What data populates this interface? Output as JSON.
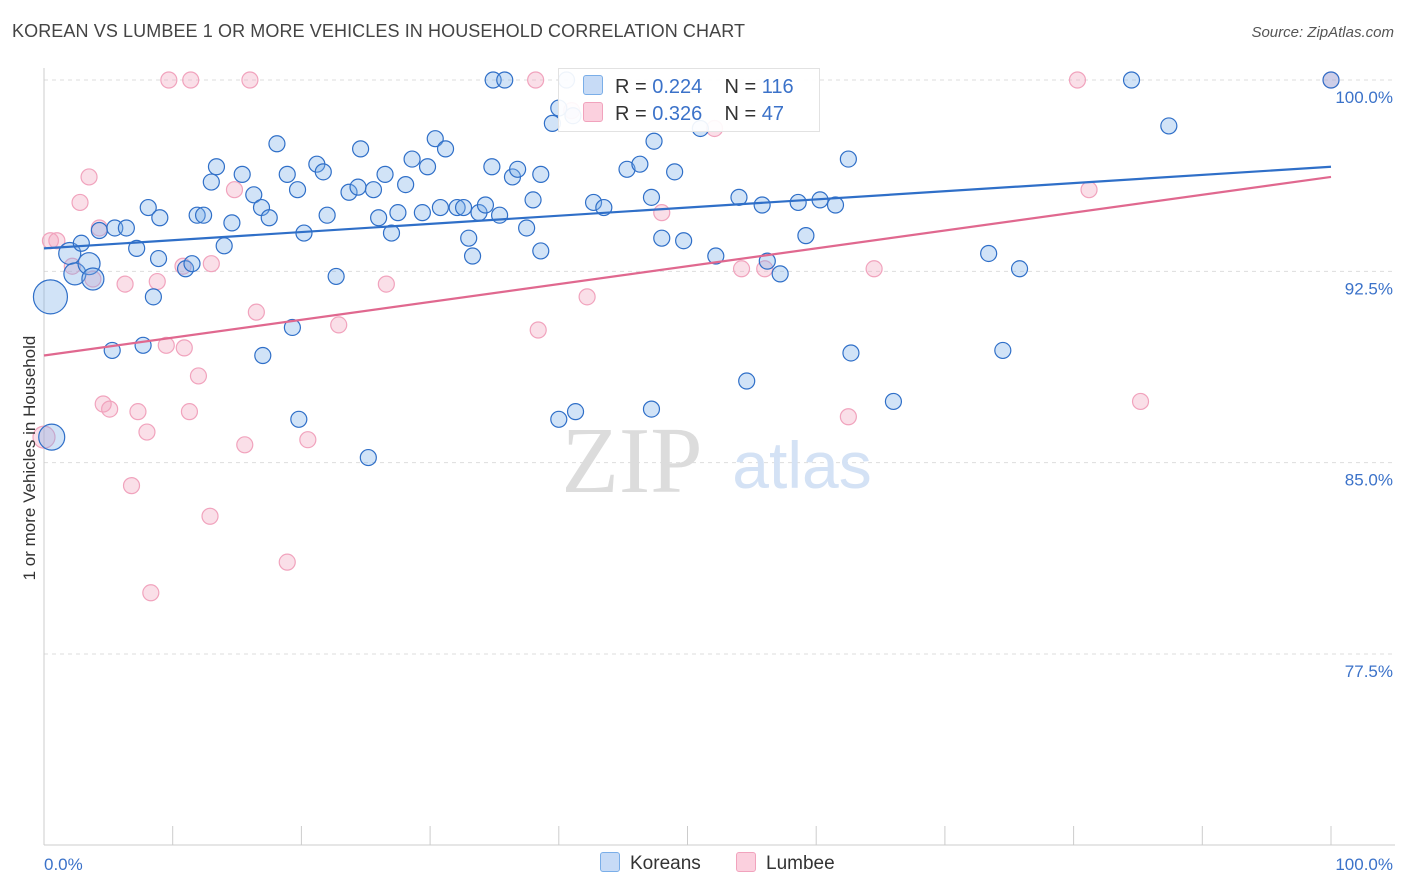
{
  "title": "KOREAN VS LUMBEE 1 OR MORE VEHICLES IN HOUSEHOLD CORRELATION CHART",
  "source": "Source: ZipAtlas.com",
  "watermark": {
    "zip": "ZIP",
    "atlas": "atlas"
  },
  "legend": {
    "koreans": {
      "r_label": "R =",
      "r_value": "0.224",
      "n_label": "N =",
      "n_value": "116"
    },
    "lumbee": {
      "r_label": "R =",
      "r_value": "0.326",
      "n_label": "N =",
      "n_value": "47"
    }
  },
  "bottom_legend": {
    "koreans": "Koreans",
    "lumbee": "Lumbee"
  },
  "colors": {
    "korean": "#7aaee8",
    "korean_line": "#2f6fc8",
    "lumbee": "#f1a3bd",
    "lumbee_line": "#e0688f",
    "tick_label": "#3b72c9"
  },
  "chart_data": {
    "type": "scatter",
    "title": "KOREAN VS LUMBEE 1 OR MORE VEHICLES IN HOUSEHOLD CORRELATION CHART",
    "xlabel": "",
    "ylabel": "1 or more Vehicles in Household",
    "xlim": [
      0,
      100
    ],
    "ylim": [
      70,
      101
    ],
    "x_tick_labels": [
      "0.0%",
      "100.0%"
    ],
    "y_ticks": [
      77.5,
      85.0,
      92.5,
      100.0
    ],
    "y_tick_labels": [
      "77.5%",
      "85.0%",
      "92.5%",
      "100.0%"
    ],
    "grid": true,
    "legend_position": "top-center",
    "series": [
      {
        "name": "Koreans",
        "r": 0.224,
        "n": 116,
        "trend": [
          [
            0,
            93.4
          ],
          [
            100,
            96.6
          ]
        ],
        "points": [
          [
            0.5,
            91.5,
            4
          ],
          [
            0.6,
            86.0,
            3
          ],
          [
            2.0,
            93.2,
            2
          ],
          [
            2.4,
            92.4,
            2
          ],
          [
            3.5,
            92.8,
            2
          ],
          [
            3.8,
            92.2,
            2
          ],
          [
            2.9,
            93.6,
            1
          ],
          [
            4.3,
            94.1,
            1
          ],
          [
            5.5,
            94.2,
            1
          ],
          [
            6.4,
            94.2,
            1
          ],
          [
            7.2,
            93.4,
            1
          ],
          [
            8.1,
            95.0,
            1
          ],
          [
            8.9,
            93.0,
            1
          ],
          [
            11.0,
            92.6,
            1
          ],
          [
            11.5,
            92.8,
            1
          ],
          [
            8.5,
            91.5,
            1
          ],
          [
            5.3,
            89.4,
            1
          ],
          [
            7.7,
            89.6,
            1
          ],
          [
            9.0,
            94.6,
            1
          ],
          [
            11.9,
            94.7,
            1
          ],
          [
            12.4,
            94.7,
            1
          ],
          [
            13.0,
            96.0,
            1
          ],
          [
            13.4,
            96.6,
            1
          ],
          [
            14.0,
            93.5,
            1
          ],
          [
            14.6,
            94.4,
            1
          ],
          [
            15.4,
            96.3,
            1
          ],
          [
            16.3,
            95.5,
            1
          ],
          [
            16.9,
            95.0,
            1
          ],
          [
            17.5,
            94.6,
            1
          ],
          [
            18.1,
            97.5,
            1
          ],
          [
            18.9,
            96.3,
            1
          ],
          [
            19.7,
            95.7,
            1
          ],
          [
            20.2,
            94.0,
            1
          ],
          [
            21.2,
            96.7,
            1
          ],
          [
            21.7,
            96.4,
            1
          ],
          [
            22.0,
            94.7,
            1
          ],
          [
            22.7,
            92.3,
            1
          ],
          [
            23.7,
            95.6,
            1
          ],
          [
            24.4,
            95.8,
            1
          ],
          [
            24.6,
            97.3,
            1
          ],
          [
            25.6,
            95.7,
            1
          ],
          [
            26.0,
            94.6,
            1
          ],
          [
            26.5,
            96.3,
            1
          ],
          [
            27.0,
            94.0,
            1
          ],
          [
            27.5,
            94.8,
            1
          ],
          [
            28.1,
            95.9,
            1
          ],
          [
            28.6,
            96.9,
            1
          ],
          [
            29.4,
            94.8,
            1
          ],
          [
            29.8,
            96.6,
            1
          ],
          [
            30.4,
            97.7,
            1
          ],
          [
            30.8,
            95.0,
            1
          ],
          [
            31.2,
            97.3,
            1
          ],
          [
            32.1,
            95.0,
            1
          ],
          [
            32.6,
            95.0,
            1
          ],
          [
            33.0,
            93.8,
            1
          ],
          [
            33.3,
            93.1,
            1
          ],
          [
            33.8,
            94.8,
            1
          ],
          [
            34.3,
            95.1,
            1
          ],
          [
            34.8,
            96.6,
            1
          ],
          [
            34.9,
            100.0,
            1
          ],
          [
            35.4,
            94.7,
            1
          ],
          [
            35.8,
            100.0,
            1
          ],
          [
            36.4,
            96.2,
            1
          ],
          [
            36.8,
            96.5,
            1
          ],
          [
            37.5,
            94.2,
            1
          ],
          [
            38.0,
            95.3,
            1
          ],
          [
            38.6,
            96.3,
            1
          ],
          [
            38.6,
            93.3,
            1
          ],
          [
            39.5,
            98.3,
            1
          ],
          [
            40.0,
            98.9,
            1
          ],
          [
            40.6,
            100.0,
            1
          ],
          [
            41.1,
            98.6,
            1
          ],
          [
            42.7,
            95.2,
            1
          ],
          [
            43.5,
            95.0,
            1
          ],
          [
            45.3,
            96.5,
            1
          ],
          [
            46.3,
            96.7,
            1
          ],
          [
            47.2,
            95.4,
            1
          ],
          [
            47.4,
            97.6,
            1
          ],
          [
            48.0,
            93.8,
            1
          ],
          [
            49.0,
            96.4,
            1
          ],
          [
            49.7,
            93.7,
            1
          ],
          [
            51.0,
            98.1,
            1
          ],
          [
            52.2,
            93.1,
            1
          ],
          [
            54.0,
            95.4,
            1
          ],
          [
            54.6,
            88.2,
            1
          ],
          [
            55.8,
            95.1,
            1
          ],
          [
            56.2,
            92.9,
            1
          ],
          [
            57.2,
            92.4,
            1
          ],
          [
            58.6,
            95.2,
            1
          ],
          [
            59.2,
            93.9,
            1
          ],
          [
            60.3,
            95.3,
            1
          ],
          [
            61.5,
            95.1,
            1
          ],
          [
            62.5,
            96.9,
            1
          ],
          [
            62.7,
            89.3,
            1
          ],
          [
            66.0,
            87.4,
            1
          ],
          [
            74.5,
            89.4,
            1
          ],
          [
            73.4,
            93.2,
            1
          ],
          [
            75.8,
            92.6,
            1
          ],
          [
            84.5,
            100.0,
            1
          ],
          [
            87.4,
            98.2,
            1
          ],
          [
            100.0,
            100.0,
            1
          ],
          [
            17.0,
            89.2,
            1
          ],
          [
            19.3,
            90.3,
            1
          ],
          [
            19.8,
            86.7,
            1
          ],
          [
            25.2,
            85.2,
            1
          ],
          [
            40.0,
            86.7,
            1
          ],
          [
            41.3,
            87.0,
            1
          ],
          [
            47.2,
            87.1,
            1
          ]
        ]
      },
      {
        "name": "Lumbee",
        "r": 0.326,
        "n": 47,
        "trend": [
          [
            0,
            89.2
          ],
          [
            100,
            96.2
          ]
        ],
        "points": [
          [
            0.0,
            86.0,
            2
          ],
          [
            0.5,
            93.7,
            1
          ],
          [
            1.0,
            93.7,
            1
          ],
          [
            2.2,
            92.7,
            1
          ],
          [
            2.8,
            95.2,
            1
          ],
          [
            3.5,
            96.2,
            1
          ],
          [
            3.8,
            92.2,
            1
          ],
          [
            4.3,
            94.2,
            1
          ],
          [
            4.6,
            87.3,
            1
          ],
          [
            5.1,
            87.1,
            1
          ],
          [
            6.3,
            92.0,
            1
          ],
          [
            6.8,
            84.1,
            1
          ],
          [
            7.3,
            87.0,
            1
          ],
          [
            8.0,
            86.2,
            1
          ],
          [
            8.3,
            79.9,
            1
          ],
          [
            8.8,
            92.1,
            1
          ],
          [
            9.5,
            89.6,
            1
          ],
          [
            10.8,
            92.7,
            1
          ],
          [
            10.9,
            89.5,
            1
          ],
          [
            11.3,
            87.0,
            1
          ],
          [
            12.0,
            88.4,
            1
          ],
          [
            12.9,
            82.9,
            1
          ],
          [
            13.0,
            92.8,
            1
          ],
          [
            14.8,
            95.7,
            1
          ],
          [
            15.6,
            85.7,
            1
          ],
          [
            16.5,
            90.9,
            1
          ],
          [
            18.9,
            81.1,
            1
          ],
          [
            20.5,
            85.9,
            1
          ],
          [
            22.9,
            90.4,
            1
          ],
          [
            26.6,
            92.0,
            1
          ],
          [
            38.4,
            90.2,
            1
          ],
          [
            41.0,
            98.8,
            1
          ],
          [
            42.2,
            91.5,
            1
          ],
          [
            48.0,
            94.8,
            1
          ],
          [
            52.1,
            98.1,
            1
          ],
          [
            54.2,
            92.6,
            1
          ],
          [
            56.0,
            92.6,
            1
          ],
          [
            62.5,
            86.8,
            1
          ],
          [
            64.5,
            92.6,
            1
          ],
          [
            80.3,
            100.0,
            1
          ],
          [
            81.2,
            95.7,
            1
          ],
          [
            85.2,
            87.4,
            1
          ],
          [
            100.0,
            100.0,
            1
          ],
          [
            9.7,
            100.0,
            1
          ],
          [
            16.0,
            100.0,
            1
          ],
          [
            38.2,
            100.0,
            1
          ],
          [
            11.4,
            100.0,
            1
          ]
        ]
      }
    ]
  }
}
